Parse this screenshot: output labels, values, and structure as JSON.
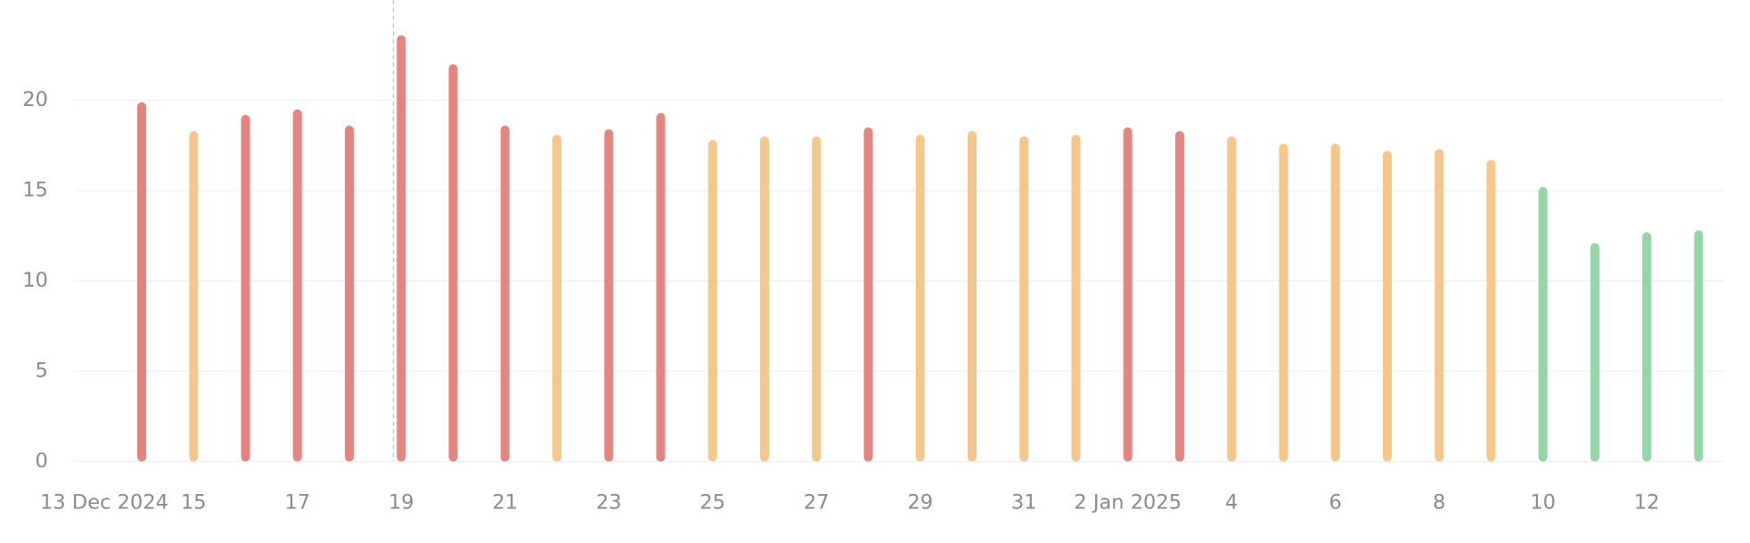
{
  "chart_data": {
    "type": "bar",
    "categories": [
      "13 Dec 2024",
      null,
      "15",
      null,
      "17",
      null,
      "19",
      null,
      "21",
      null,
      "23",
      null,
      "25",
      null,
      "27",
      null,
      "29",
      null,
      "31",
      null,
      "2 Jan 2025",
      null,
      "4",
      null,
      "6",
      null,
      "8",
      null,
      "10",
      null,
      "12",
      null
    ],
    "values": [
      null,
      19.9,
      18.3,
      19.2,
      19.5,
      18.6,
      23.6,
      22.0,
      18.6,
      18.1,
      18.4,
      19.3,
      17.8,
      18.0,
      18.0,
      18.5,
      18.1,
      18.3,
      18.0,
      18.1,
      18.5,
      18.3,
      18.0,
      17.6,
      17.6,
      17.2,
      17.3,
      16.7,
      15.2,
      12.1,
      12.7,
      12.8
    ],
    "colors": [
      null,
      "#e5857f",
      "#f5c78a",
      "#e5857f",
      "#e5857f",
      "#e5857f",
      "#e5857f",
      "#e5857f",
      "#e5857f",
      "#f5c78a",
      "#e5857f",
      "#e5857f",
      "#f5c78a",
      "#f5c78a",
      "#f5c78a",
      "#e5857f",
      "#f5c78a",
      "#f5c78a",
      "#f5c78a",
      "#f5c78a",
      "#e5857f",
      "#e5857f",
      "#f5c78a",
      "#f5c78a",
      "#f5c78a",
      "#f5c78a",
      "#f5c78a",
      "#f5c78a",
      "#95d5a6",
      "#95d5a6",
      "#95d5a6",
      "#95d5a6"
    ],
    "ylim": [
      0,
      25.5
    ],
    "yticks": [
      0,
      5,
      10,
      15,
      20
    ],
    "grid": true
  }
}
